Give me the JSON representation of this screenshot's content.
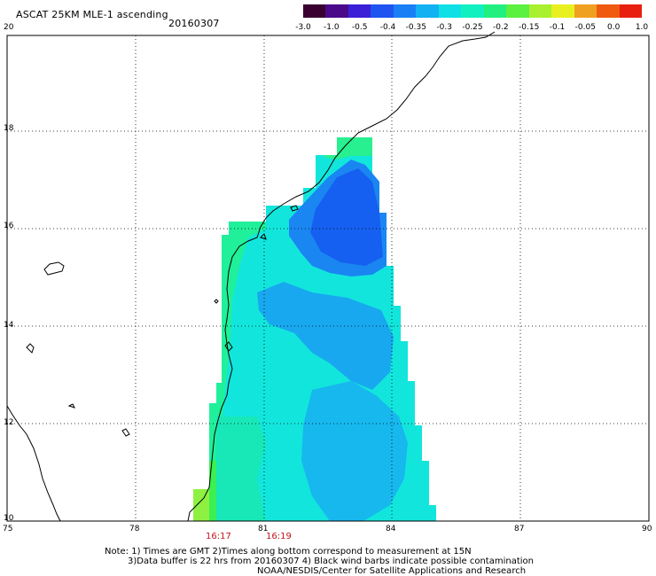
{
  "header": {
    "title": "ASCAT 25KM MLE-1 ascending",
    "date": "20160307"
  },
  "colorbar": {
    "labels": [
      "-3.0",
      "-1.0",
      "-0.5",
      "-0.4",
      "-0.35",
      "-0.3",
      "-0.25",
      "-0.2",
      "-0.15",
      "-0.1",
      "-0.05",
      "0.0",
      "1.0"
    ],
    "colors": [
      "#3a0030",
      "#4a0a8a",
      "#3b20d8",
      "#1f54f0",
      "#1a7ff5",
      "#12b2f2",
      "#10e0e5",
      "#12f0c0",
      "#22f07e",
      "#5cf040",
      "#a8f030",
      "#e8f020",
      "#f0a020",
      "#f05a10",
      "#e82010"
    ]
  },
  "axes": {
    "x_ticks": [
      "75",
      "78",
      "81",
      "84",
      "87",
      "90"
    ],
    "y_ticks": [
      "20",
      "18",
      "16",
      "14",
      "12",
      "10"
    ]
  },
  "times": [
    "16:17",
    "16:19"
  ],
  "notes": {
    "line1": "Note: 1) Times are GMT 2)Times along bottom correspond to measurement at 15N",
    "line2": "3)Data buffer is 22 hrs from 20160307 4) Black wind barbs indicate possible contamination",
    "line3": "NOAA/NESDIS/Center for Satellite Applications and Research"
  }
}
